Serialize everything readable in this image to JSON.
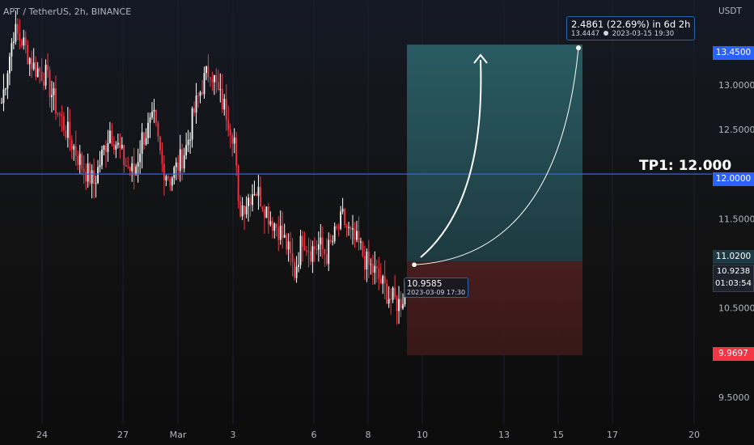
{
  "header": {
    "symbol_title": "APT / TetherUS, 2h, BINANCE",
    "currency": "USDT"
  },
  "annotations": {
    "tp_label": "TP1: 12.000",
    "target_line1": "2.4861 (22.69%) in 6d 2h",
    "target_line2_value": "13.4447",
    "target_line2_date": "2023-03-15  19:30",
    "entry_line1": "10.9585",
    "entry_line2": "2023-03-09 17:30"
  },
  "price_tags": {
    "target": "13.4500",
    "tp": "12.0000",
    "entry": "11.0200",
    "last_price": "10.9238",
    "countdown": "01:03:54",
    "stop": "9.9697"
  },
  "colors": {
    "bull": "#ffffff",
    "bear": "#f23645",
    "tp_line": "#2962ff",
    "profit_zone": "#2a5a60",
    "loss_zone": "#4a1f1f",
    "curve": "#ffffff"
  },
  "chart_data": {
    "type": "candlestick",
    "title": "APT / TetherUS, 2h, BINANCE",
    "y_axis": {
      "ticks": [
        9.5,
        10.5,
        11.5,
        12.5,
        13.0
      ],
      "tick_labels": [
        "9.5000",
        "10.5000",
        "11.5000",
        "12.5000",
        "13.0000"
      ],
      "range": [
        9.2,
        13.95
      ]
    },
    "x_axis": {
      "tick_labels": [
        "24",
        "27",
        "Mar",
        "3",
        "6",
        "8",
        "10",
        "13",
        "15",
        "17",
        "20"
      ],
      "range_days": [
        "2023-02-23",
        "2023-03-20"
      ]
    },
    "horizontal_lines": [
      {
        "name": "TP1",
        "value": 12.0
      }
    ],
    "long_position": {
      "entry": 11.02,
      "target": 13.45,
      "stop": 9.9697,
      "start": "2023-03-09",
      "end": "2023-03-15"
    },
    "path_segments": [
      [
        0,
        12.8
      ],
      [
        6,
        13.6
      ],
      [
        10,
        13.5
      ],
      [
        16,
        13.2
      ],
      [
        22,
        13.1
      ],
      [
        28,
        12.7
      ],
      [
        34,
        12.4
      ],
      [
        40,
        12.1
      ],
      [
        46,
        11.9
      ],
      [
        50,
        12.2
      ],
      [
        54,
        12.5
      ],
      [
        58,
        12.3
      ],
      [
        62,
        12.1
      ],
      [
        66,
        12.0
      ],
      [
        70,
        12.4
      ],
      [
        76,
        12.6
      ],
      [
        80,
        12.1
      ],
      [
        84,
        11.95
      ],
      [
        88,
        12.1
      ],
      [
        92,
        12.3
      ],
      [
        96,
        12.7
      ],
      [
        100,
        13.0
      ],
      [
        104,
        13.2
      ],
      [
        108,
        12.9
      ],
      [
        112,
        12.7
      ],
      [
        116,
        12.4
      ],
      [
        118,
        11.6
      ],
      [
        122,
        11.7
      ],
      [
        126,
        11.85
      ],
      [
        130,
        11.7
      ],
      [
        134,
        11.5
      ],
      [
        138,
        11.4
      ],
      [
        142,
        11.2
      ],
      [
        146,
        10.9
      ],
      [
        150,
        11.3
      ],
      [
        154,
        11.15
      ],
      [
        158,
        11.2
      ],
      [
        162,
        11.1
      ],
      [
        166,
        11.3
      ],
      [
        170,
        11.5
      ],
      [
        174,
        11.3
      ],
      [
        178,
        11.2
      ],
      [
        182,
        11.0
      ],
      [
        186,
        10.9
      ],
      [
        190,
        10.75
      ],
      [
        194,
        10.6
      ],
      [
        198,
        10.55
      ],
      [
        202,
        10.7
      ]
    ]
  }
}
